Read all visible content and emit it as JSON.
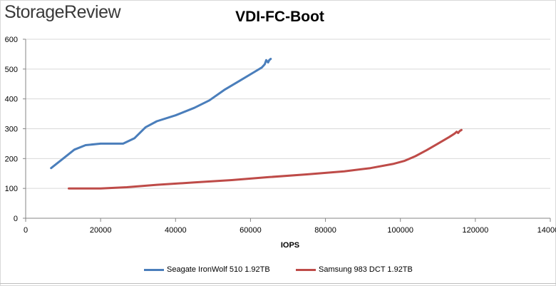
{
  "brand": {
    "name": "StorageReview"
  },
  "chart_data": {
    "type": "line",
    "title": "VDI-FC-Boot",
    "xlabel": "IOPS",
    "ylabel": "",
    "xlim": [
      0,
      140000
    ],
    "ylim": [
      0,
      600
    ],
    "x_ticks": [
      "0",
      "20000",
      "40000",
      "60000",
      "80000",
      "100000",
      "120000",
      "140000"
    ],
    "y_ticks": [
      "0",
      "100",
      "200",
      "300",
      "400",
      "500",
      "600"
    ],
    "grid": "horizontal",
    "legend": "bottom",
    "series": [
      {
        "name": "Seagate IronWolf 510 1.92TB",
        "color": "#4a7ebb",
        "points": [
          [
            6800,
            168
          ],
          [
            10000,
            200
          ],
          [
            13000,
            230
          ],
          [
            16000,
            245
          ],
          [
            20000,
            250
          ],
          [
            23000,
            250
          ],
          [
            26000,
            250
          ],
          [
            29000,
            268
          ],
          [
            32000,
            305
          ],
          [
            35000,
            325
          ],
          [
            40000,
            345
          ],
          [
            45000,
            370
          ],
          [
            49000,
            395
          ],
          [
            53000,
            430
          ],
          [
            57000,
            460
          ],
          [
            61000,
            490
          ],
          [
            63000,
            505
          ],
          [
            63800,
            516
          ],
          [
            64200,
            530
          ],
          [
            64700,
            522
          ],
          [
            65000,
            530
          ],
          [
            65400,
            534
          ]
        ]
      },
      {
        "name": "Samsung 983 DCT 1.92TB",
        "color": "#be4b48",
        "points": [
          [
            11500,
            100
          ],
          [
            20000,
            100
          ],
          [
            27000,
            104
          ],
          [
            35000,
            112
          ],
          [
            45000,
            120
          ],
          [
            55000,
            128
          ],
          [
            65000,
            138
          ],
          [
            75000,
            147
          ],
          [
            85000,
            157
          ],
          [
            92000,
            168
          ],
          [
            98000,
            182
          ],
          [
            101000,
            192
          ],
          [
            104000,
            208
          ],
          [
            107000,
            228
          ],
          [
            110000,
            250
          ],
          [
            113000,
            272
          ],
          [
            114500,
            284
          ],
          [
            115000,
            290
          ],
          [
            115400,
            286
          ],
          [
            115800,
            292
          ],
          [
            116300,
            296
          ]
        ]
      }
    ]
  }
}
